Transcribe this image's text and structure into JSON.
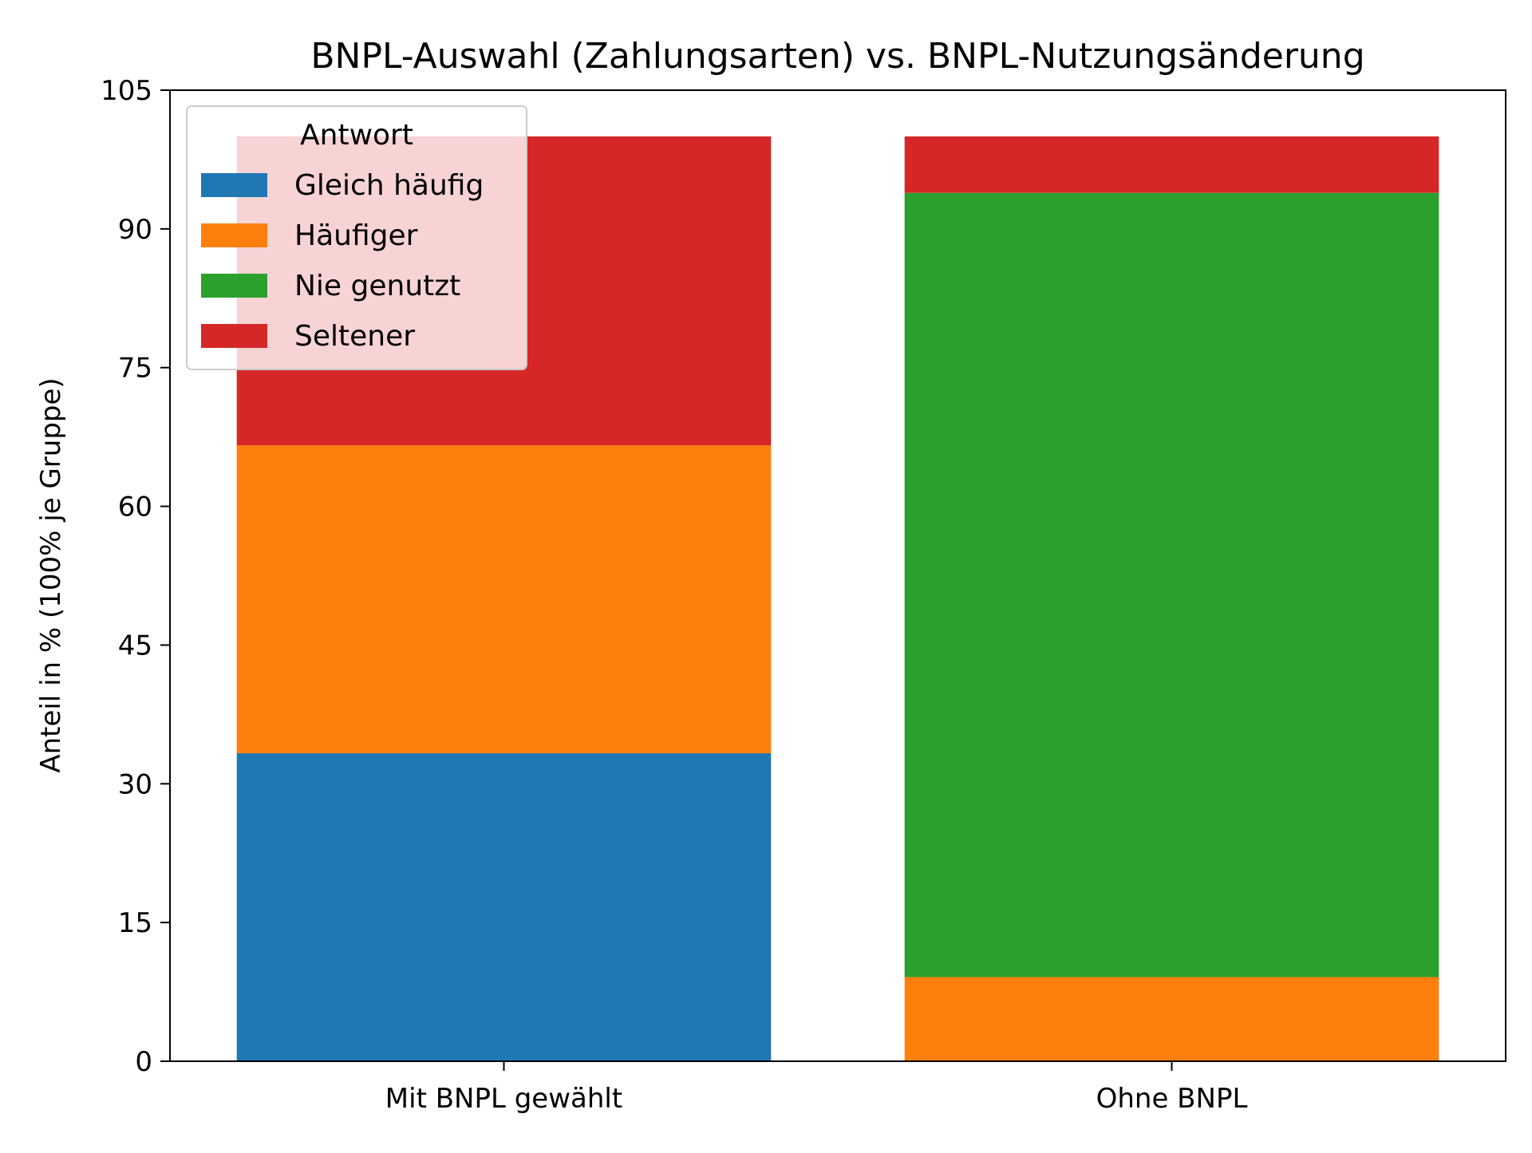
{
  "chart_data": {
    "type": "bar",
    "stacked": true,
    "title": "BNPL-Auswahl (Zahlungsarten) vs. BNPL-Nutzungsänderung",
    "xlabel": "",
    "ylabel": "Anteil in % (100% je Gruppe)",
    "categories": [
      "Mit BNPL gewählt",
      "Ohne BNPL"
    ],
    "ylim": [
      0,
      105
    ],
    "yticks": [
      "0",
      "15",
      "30",
      "45",
      "60",
      "75",
      "90",
      "105"
    ],
    "grid": false,
    "legend": {
      "title": "Antwort",
      "placement": "top-left"
    },
    "series": [
      {
        "name": "Gleich häufig",
        "color": "#1f77b4",
        "values": [
          33.3,
          0
        ]
      },
      {
        "name": "Häufiger",
        "color": "#ff7f0e",
        "values": [
          33.3,
          9.1
        ]
      },
      {
        "name": "Nie genutzt",
        "color": "#2ca02c",
        "values": [
          0,
          84.8
        ]
      },
      {
        "name": "Seltener",
        "color": "#d62728",
        "values": [
          33.4,
          6.1
        ]
      }
    ]
  }
}
